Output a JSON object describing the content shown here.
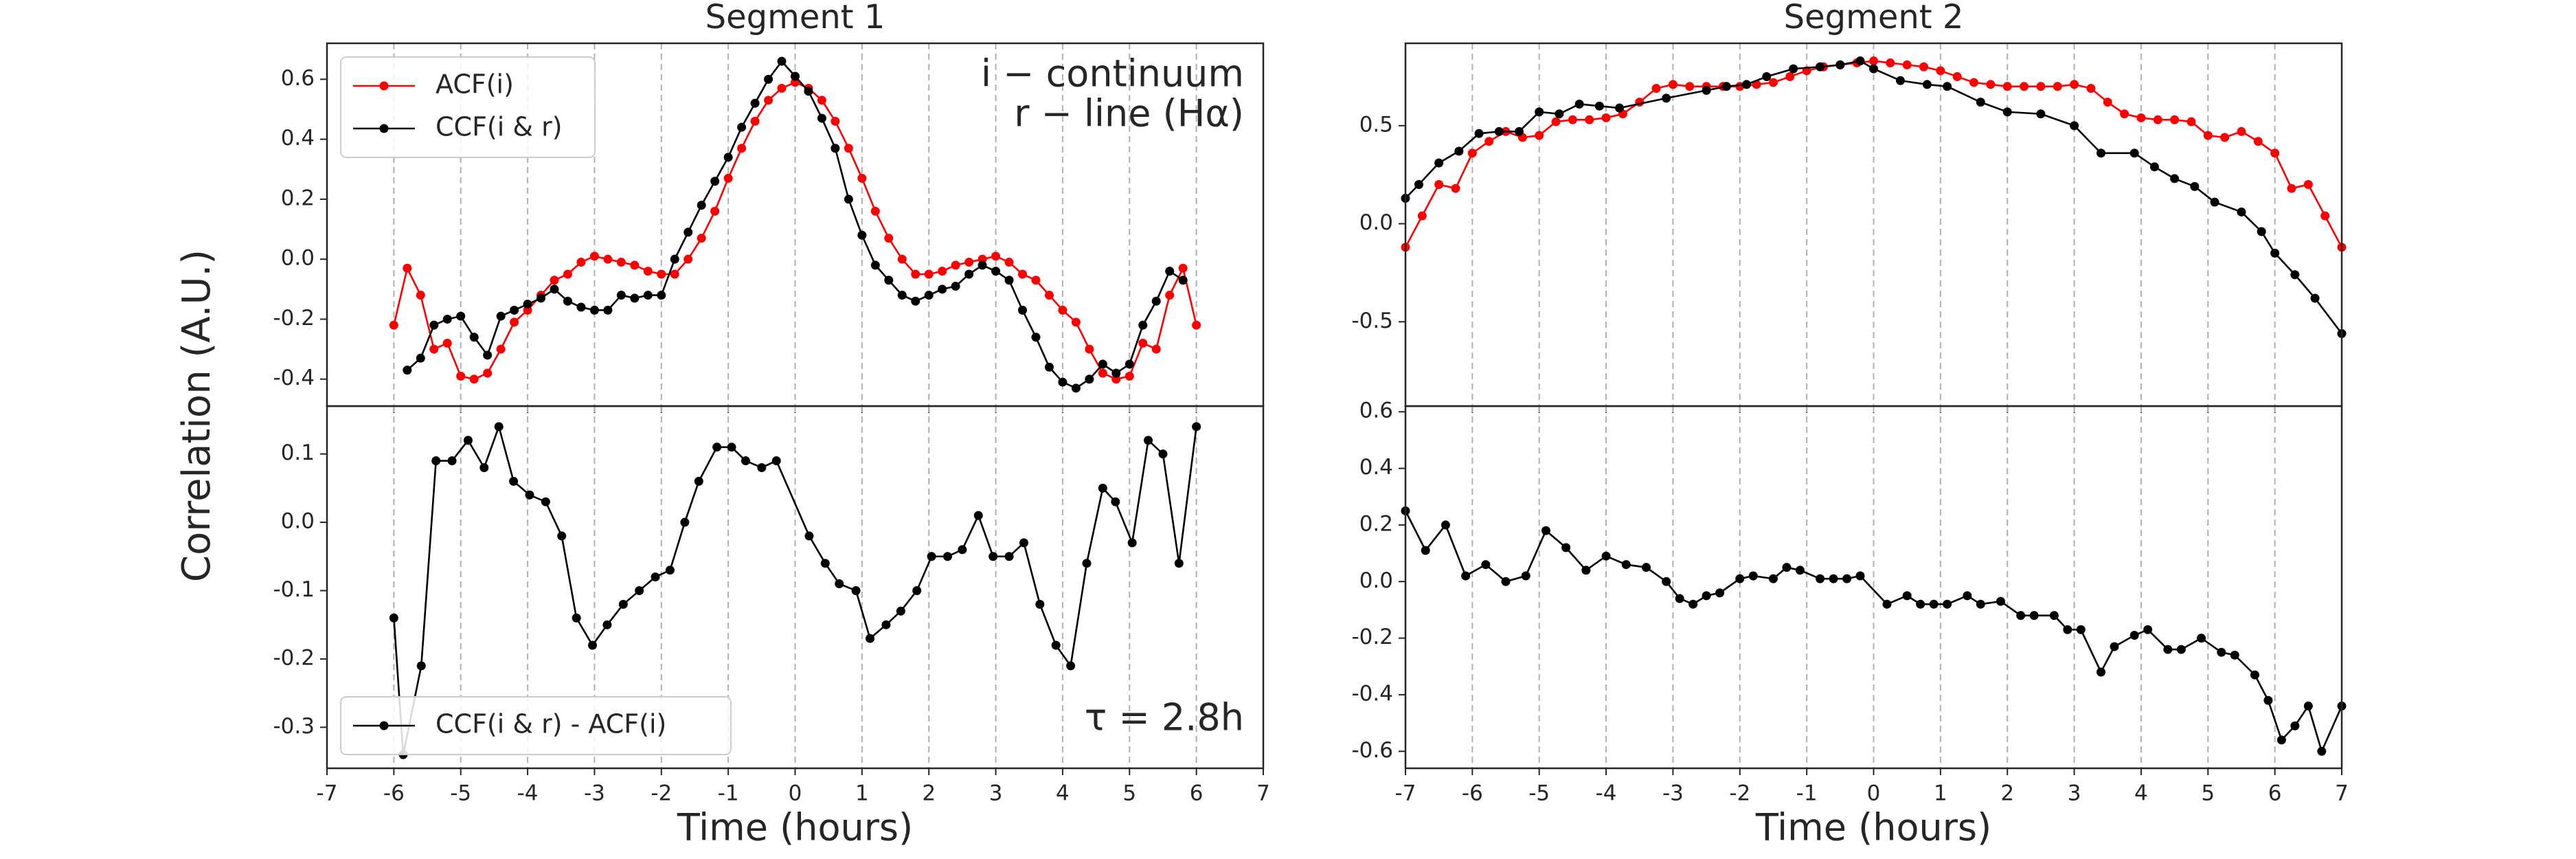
{
  "chart_data": [
    {
      "type": "line",
      "title": "Segment 1",
      "ylabel": "Correlation (A.U.)",
      "legend": "upper left",
      "grid": "x",
      "show_xtick_labels": false,
      "annotations": [
        "i − continuum",
        "r − line (Hα)"
      ],
      "xlim": [
        -7,
        7
      ],
      "xticks": [
        -7,
        -6,
        -5,
        -4,
        -3,
        -2,
        -1,
        0,
        1,
        2,
        3,
        4,
        5,
        6,
        7
      ],
      "ylim": [
        -0.49,
        0.72
      ],
      "yticks": [
        -0.4,
        -0.2,
        {
          "value": 0,
          "label": "0.0"
        },
        0.2,
        0.4,
        0.6
      ],
      "series": [
        {
          "name": "ACF(i)",
          "color": "#ff0000",
          "x": [
            -6,
            -5.8,
            -5.6,
            -5.4,
            -5.2,
            -5,
            -4.8,
            -4.6,
            -4.4,
            -4.2,
            -4,
            -3.8,
            -3.6,
            -3.4,
            -3.2,
            -3,
            -2.8,
            -2.6,
            -2.4,
            -2.2,
            -2,
            -1.8,
            -1.6,
            -1.4,
            -1.2,
            -1,
            -0.8,
            -0.6,
            -0.4,
            -0.2,
            0,
            0.2,
            0.4,
            0.6,
            0.8,
            1,
            1.2,
            1.4,
            1.6,
            1.8,
            2,
            2.2,
            2.4,
            2.6,
            2.8,
            3,
            3.2,
            3.4,
            3.6,
            3.8,
            4,
            4.2,
            4.4,
            4.6,
            4.8,
            5,
            5.2,
            5.4,
            5.6,
            5.8,
            6
          ],
          "values": [
            -0.22,
            -0.03,
            -0.12,
            -0.3,
            -0.28,
            -0.39,
            -0.4,
            -0.38,
            -0.3,
            -0.21,
            -0.17,
            -0.12,
            -0.07,
            -0.05,
            -0.01,
            0.01,
            0.0,
            -0.01,
            -0.02,
            -0.04,
            -0.05,
            -0.05,
            0.0,
            0.07,
            0.16,
            0.27,
            0.37,
            0.46,
            0.53,
            0.57,
            0.59,
            0.57,
            0.53,
            0.46,
            0.37,
            0.27,
            0.16,
            0.07,
            0.0,
            -0.05,
            -0.05,
            -0.04,
            -0.02,
            -0.01,
            0.0,
            0.01,
            -0.01,
            -0.05,
            -0.07,
            -0.12,
            -0.17,
            -0.21,
            -0.3,
            -0.38,
            -0.4,
            -0.39,
            -0.28,
            -0.3,
            -0.12,
            -0.03,
            -0.22
          ]
        },
        {
          "name": "CCF(i & r)",
          "color": "#000000",
          "x": [
            -5.8,
            -5.6,
            -5.4,
            -5.2,
            -5,
            -4.8,
            -4.6,
            -4.4,
            -4.2,
            -4,
            -3.8,
            -3.6,
            -3.4,
            -3.2,
            -3,
            -2.8,
            -2.6,
            -2.4,
            -2.2,
            -2,
            -1.8,
            -1.6,
            -1.4,
            -1.2,
            -1,
            -0.8,
            -0.6,
            -0.4,
            -0.2,
            0,
            0.2,
            0.4,
            0.6,
            0.8,
            1,
            1.2,
            1.4,
            1.6,
            1.8,
            2,
            2.2,
            2.4,
            2.6,
            2.8,
            3,
            3.2,
            3.4,
            3.6,
            3.8,
            4,
            4.2,
            4.4,
            4.6,
            4.8,
            5,
            5.2,
            5.4,
            5.6,
            5.8
          ],
          "values": [
            -0.37,
            -0.33,
            -0.22,
            -0.2,
            -0.19,
            -0.26,
            -0.32,
            -0.19,
            -0.17,
            -0.15,
            -0.13,
            -0.1,
            -0.14,
            -0.16,
            -0.17,
            -0.17,
            -0.12,
            -0.13,
            -0.12,
            -0.12,
            0.0,
            0.09,
            0.18,
            0.26,
            0.34,
            0.44,
            0.52,
            0.6,
            0.66,
            0.61,
            0.56,
            0.47,
            0.37,
            0.2,
            0.08,
            -0.02,
            -0.07,
            -0.12,
            -0.14,
            -0.12,
            -0.1,
            -0.09,
            -0.05,
            -0.02,
            -0.04,
            -0.07,
            -0.17,
            -0.26,
            -0.36,
            -0.41,
            -0.43,
            -0.4,
            -0.35,
            -0.38,
            -0.35,
            -0.22,
            -0.14,
            -0.04,
            -0.07
          ]
        }
      ]
    },
    {
      "type": "line",
      "xlabel": "Time (hours)",
      "legend": "lower left",
      "grid": "x",
      "show_xtick_labels": true,
      "annotations": [
        "τ = 2.8h"
      ],
      "xlim": [
        -7,
        7
      ],
      "xticks": [
        -7,
        -6,
        -5,
        -4,
        -3,
        -2,
        -1,
        0,
        1,
        2,
        3,
        4,
        5,
        6,
        7
      ],
      "ylim": [
        -0.36,
        0.17
      ],
      "yticks": [
        -0.3,
        -0.2,
        -0.1,
        {
          "value": 0,
          "label": "0.0"
        },
        0.1
      ],
      "series": [
        {
          "name": "CCF(i & r) - ACF(i)",
          "color": "#000000",
          "x": [
            -6,
            -5.86,
            -5.59,
            -5.37,
            -5.13,
            -4.89,
            -4.65,
            -4.43,
            -4.21,
            -3.97,
            -3.73,
            -3.49,
            -3.27,
            -3.03,
            -2.81,
            -2.57,
            -2.33,
            -2.09,
            -1.87,
            -1.65,
            -1.44,
            -1.17,
            -0.95,
            -0.74,
            -0.5,
            -0.28,
            0.21,
            0.45,
            0.66,
            0.91,
            1.12,
            1.36,
            1.58,
            1.82,
            2.04,
            2.28,
            2.5,
            2.74,
            2.96,
            3.2,
            3.42,
            3.66,
            3.9,
            4.12,
            4.36,
            4.6,
            4.79,
            5.04,
            5.28,
            5.5,
            5.74,
            6
          ],
          "values": [
            -0.14,
            -0.34,
            -0.21,
            0.09,
            0.09,
            0.12,
            0.08,
            0.14,
            0.06,
            0.04,
            0.03,
            -0.02,
            -0.14,
            -0.18,
            -0.15,
            -0.12,
            -0.1,
            -0.08,
            -0.07,
            0.0,
            0.06,
            0.11,
            0.11,
            0.09,
            0.08,
            0.09,
            -0.02,
            -0.06,
            -0.09,
            -0.1,
            -0.17,
            -0.15,
            -0.13,
            -0.1,
            -0.05,
            -0.05,
            -0.04,
            0.01,
            -0.05,
            -0.05,
            -0.03,
            -0.12,
            -0.18,
            -0.21,
            -0.06,
            0.05,
            0.03,
            -0.03,
            0.12,
            0.1,
            -0.06,
            0.14
          ]
        }
      ]
    },
    {
      "type": "line",
      "title": "Segment 2",
      "grid": "x",
      "show_xtick_labels": false,
      "xlim": [
        -7,
        7
      ],
      "xticks": [
        -7,
        -6,
        -5,
        -4,
        -3,
        -2,
        -1,
        0,
        1,
        2,
        3,
        4,
        5,
        6,
        7
      ],
      "ylim": [
        -0.93,
        0.92
      ],
      "yticks": [
        -0.5,
        {
          "value": 0,
          "label": "0.0"
        },
        0.5
      ],
      "series": [
        {
          "color": "#ff0000",
          "x": [
            -7,
            -6.75,
            -6.5,
            -6.25,
            -6,
            -5.75,
            -5.5,
            -5.25,
            -5,
            -4.75,
            -4.5,
            -4.25,
            -4,
            -3.75,
            -3.5,
            -3.25,
            -3,
            -2.75,
            -2.5,
            -2.25,
            -2,
            -1.75,
            -1.5,
            -1.25,
            -1,
            -0.75,
            -0.5,
            -0.25,
            0,
            0.25,
            0.5,
            0.75,
            1,
            1.25,
            1.5,
            1.75,
            2,
            2.25,
            2.5,
            2.75,
            3,
            3.25,
            3.5,
            3.75,
            4,
            4.25,
            4.5,
            4.75,
            5,
            5.25,
            5.5,
            5.75,
            6,
            6.25,
            6.5,
            6.75,
            7
          ],
          "values": [
            -0.12,
            0.04,
            0.2,
            0.18,
            0.36,
            0.42,
            0.47,
            0.44,
            0.45,
            0.52,
            0.53,
            0.53,
            0.54,
            0.56,
            0.62,
            0.69,
            0.71,
            0.7,
            0.7,
            0.7,
            0.7,
            0.71,
            0.72,
            0.75,
            0.78,
            0.8,
            0.81,
            0.82,
            0.83,
            0.82,
            0.81,
            0.8,
            0.78,
            0.75,
            0.72,
            0.71,
            0.7,
            0.7,
            0.7,
            0.7,
            0.71,
            0.69,
            0.62,
            0.56,
            0.54,
            0.53,
            0.53,
            0.52,
            0.45,
            0.44,
            0.47,
            0.42,
            0.36,
            0.18,
            0.2,
            0.04,
            -0.12
          ]
        },
        {
          "color": "#000000",
          "x": [
            -7,
            -6.8,
            -6.5,
            -6.2,
            -5.9,
            -5.6,
            -5.3,
            -5,
            -4.7,
            -4.4,
            -4.1,
            -3.8,
            -3.1,
            -2.5,
            -2.2,
            -1.9,
            -1.6,
            -1.2,
            -0.8,
            -0.5,
            -0.2,
            0,
            0.4,
            0.8,
            1.1,
            1.6,
            2,
            2.5,
            3,
            3.4,
            3.9,
            4.2,
            4.5,
            4.8,
            5.1,
            5.5,
            5.8,
            6,
            6.3,
            6.6,
            7
          ],
          "values": [
            0.13,
            0.2,
            0.31,
            0.37,
            0.46,
            0.47,
            0.47,
            0.57,
            0.56,
            0.61,
            0.6,
            0.59,
            0.64,
            0.68,
            0.7,
            0.71,
            0.75,
            0.79,
            0.8,
            0.81,
            0.83,
            0.79,
            0.73,
            0.71,
            0.7,
            0.62,
            0.57,
            0.56,
            0.5,
            0.36,
            0.36,
            0.29,
            0.23,
            0.19,
            0.11,
            0.06,
            -0.04,
            -0.15,
            -0.26,
            -0.38,
            -0.56
          ]
        }
      ]
    },
    {
      "type": "line",
      "xlabel": "Time (hours)",
      "grid": "x",
      "show_xtick_labels": true,
      "xlim": [
        -7,
        7
      ],
      "xticks": [
        -7,
        -6,
        -5,
        -4,
        -3,
        -2,
        -1,
        0,
        1,
        2,
        3,
        4,
        5,
        6,
        7
      ],
      "ylim": [
        -0.66,
        0.62
      ],
      "yticks": [
        -0.6,
        -0.4,
        -0.2,
        {
          "value": 0,
          "label": "0.0"
        },
        0.2,
        0.4,
        0.6
      ],
      "series": [
        {
          "color": "#000000",
          "x": [
            -7,
            -6.7,
            -6.4,
            -6.1,
            -5.8,
            -5.5,
            -5.2,
            -4.9,
            -4.6,
            -4.3,
            -4,
            -3.7,
            -3.4,
            -3.1,
            -2.9,
            -2.7,
            -2.5,
            -2.3,
            -2,
            -1.8,
            -1.5,
            -1.3,
            -1.1,
            -0.8,
            -0.6,
            -0.4,
            -0.2,
            0.2,
            0.5,
            0.7,
            0.9,
            1.1,
            1.4,
            1.6,
            1.9,
            2.2,
            2.4,
            2.7,
            2.9,
            3.1,
            3.4,
            3.6,
            3.9,
            4.1,
            4.4,
            4.6,
            4.9,
            5.2,
            5.4,
            5.7,
            5.9,
            6.1,
            6.3,
            6.5,
            6.7,
            7
          ],
          "values": [
            0.25,
            0.11,
            0.2,
            0.02,
            0.06,
            0.0,
            0.02,
            0.18,
            0.12,
            0.04,
            0.09,
            0.06,
            0.05,
            0.0,
            -0.06,
            -0.08,
            -0.05,
            -0.04,
            0.01,
            0.02,
            0.01,
            0.05,
            0.04,
            0.01,
            0.01,
            0.01,
            0.02,
            -0.08,
            -0.05,
            -0.08,
            -0.08,
            -0.08,
            -0.05,
            -0.08,
            -0.07,
            -0.12,
            -0.12,
            -0.12,
            -0.17,
            -0.17,
            -0.32,
            -0.23,
            -0.19,
            -0.17,
            -0.24,
            -0.24,
            -0.2,
            -0.25,
            -0.26,
            -0.33,
            -0.42,
            -0.56,
            -0.51,
            -0.44,
            -0.6,
            -0.44
          ]
        }
      ]
    }
  ]
}
